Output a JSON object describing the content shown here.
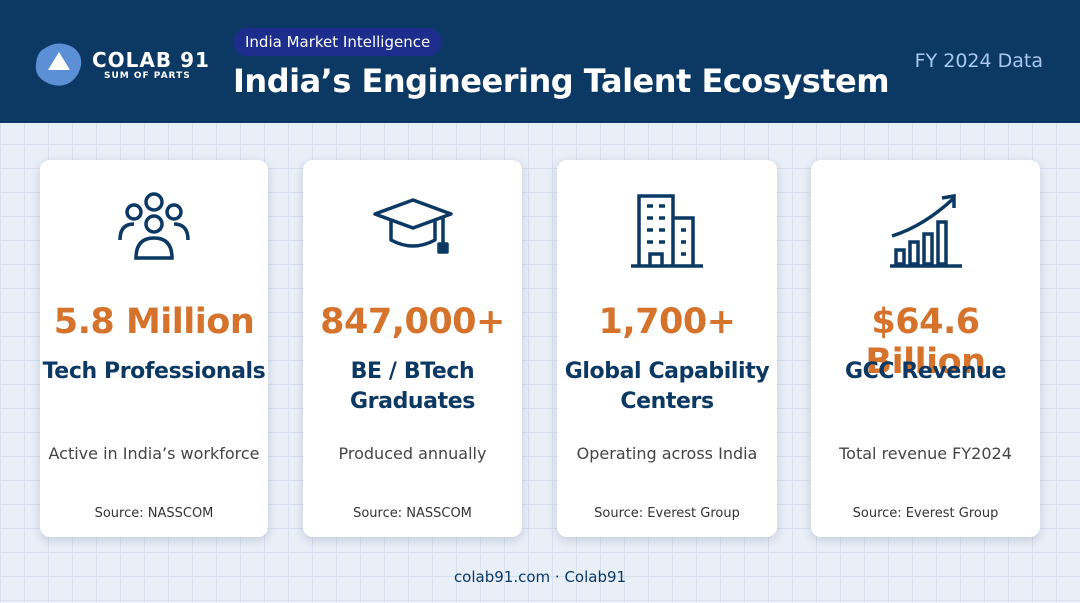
{
  "header": {
    "brand": "COLAB 91",
    "brand_tagline": "SUM OF PARTS",
    "badge": "India Market Intelligence",
    "title": "India’s Engineering Talent Ecosystem",
    "period": "FY 2024 Data"
  },
  "cards": [
    {
      "value": "5.8 Million",
      "label": "Tech Professionals",
      "description": "Active in India’s workforce",
      "source": "Source: NASSCOM"
    },
    {
      "value": "847,000+",
      "label": "BE / BTech Graduates",
      "description": "Produced annually",
      "source": "Source: NASSCOM"
    },
    {
      "value": "1,700+",
      "label": "Global Capability Centers",
      "description": "Operating across India",
      "source": "Source: Everest Group"
    },
    {
      "value": "$64.6 Billion",
      "label": "GCC Revenue",
      "description": "Total revenue FY2024",
      "source": "Source: Everest Group"
    }
  ],
  "footer": "colab91.com · Colab91"
}
